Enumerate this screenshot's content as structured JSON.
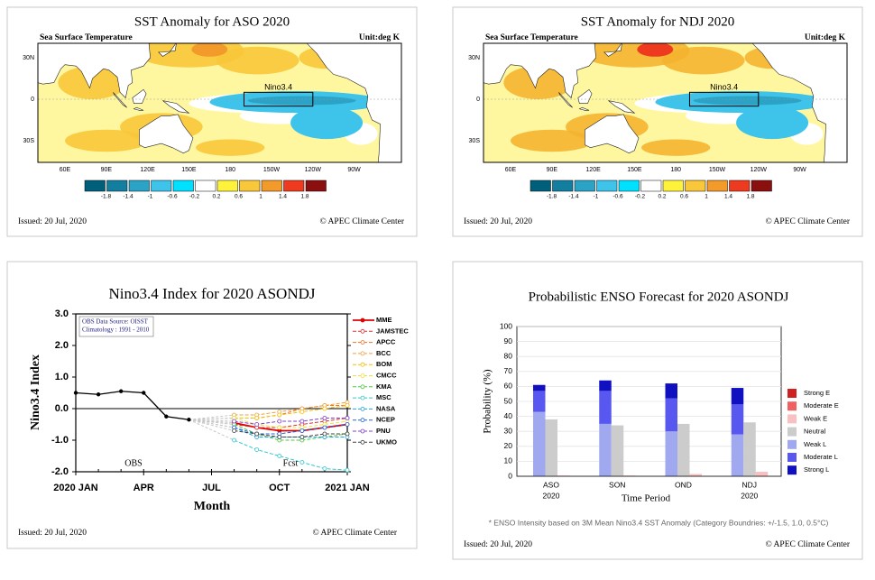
{
  "maps": [
    {
      "title": "SST Anomaly for ASO 2020",
      "subtitle": "Sea Surface Temperature",
      "unit": "Unit:deg K",
      "box_label": "Nino3.4",
      "lat_labels": [
        "30N",
        "0",
        "30S"
      ],
      "lon_labels": [
        "60E",
        "90E",
        "120E",
        "150E",
        "180",
        "150W",
        "120W",
        "90W"
      ],
      "colorbar_ticks": [
        -1.8,
        -1.4,
        -1,
        -0.6,
        -0.2,
        0.2,
        0.6,
        1,
        1.4,
        1.8
      ],
      "colorbar_colors": [
        "#005f7a",
        "#137fa0",
        "#2aa3c6",
        "#3ec3ea",
        "#00e0ff",
        "#ffffff",
        "#fff23a",
        "#f8c73a",
        "#f29a2a",
        "#ee3a1f",
        "#8b0f0f"
      ],
      "issued": "Issued: 20 Jul, 2020",
      "credit": "© APEC Climate Center"
    },
    {
      "title": "SST Anomaly for NDJ 2020",
      "subtitle": "Sea Surface Temperature",
      "unit": "Unit:deg K",
      "box_label": "Nino3.4",
      "lat_labels": [
        "30N",
        "0",
        "30S"
      ],
      "lon_labels": [
        "60E",
        "90E",
        "120E",
        "150E",
        "180",
        "150W",
        "120W",
        "90W"
      ],
      "colorbar_ticks": [
        -1.8,
        -1.4,
        -1,
        -0.6,
        -0.2,
        0.2,
        0.6,
        1,
        1.4,
        1.8
      ],
      "colorbar_colors": [
        "#005f7a",
        "#137fa0",
        "#2aa3c6",
        "#3ec3ea",
        "#00e0ff",
        "#ffffff",
        "#fff23a",
        "#f8c73a",
        "#f29a2a",
        "#ee3a1f",
        "#8b0f0f"
      ],
      "issued": "Issued: 20 Jul, 2020",
      "credit": "© APEC Climate Center"
    }
  ],
  "chart_data": [
    {
      "type": "line",
      "title": "Nino3.4 Index for 2020 ASONDJ",
      "x_label": "Month",
      "y_label": "Nino3.4 Index",
      "source_note": [
        "OBS Data Source: OISST",
        "Climatology : 1991 - 2010"
      ],
      "obs_label": "OBS",
      "fcst_label": "Fcst",
      "xlim": [
        0,
        12
      ],
      "xticks": [
        {
          "value": 0,
          "label": "2020 JAN"
        },
        {
          "value": 3,
          "label": "APR"
        },
        {
          "value": 6,
          "label": "JUL"
        },
        {
          "value": 9,
          "label": "OCT"
        },
        {
          "value": 12,
          "label": "2021 JAN"
        }
      ],
      "ylim": [
        -2,
        3
      ],
      "yticks": [
        {
          "value": -2,
          "label": "-2.0"
        },
        {
          "value": -1,
          "label": "-1.0"
        },
        {
          "value": 0,
          "label": "0.0"
        },
        {
          "value": 1,
          "label": "1.0"
        },
        {
          "value": 2,
          "label": "2.0"
        },
        {
          "value": 3,
          "label": "3.0"
        }
      ],
      "obs": {
        "x": [
          0,
          1,
          2,
          3,
          4,
          5
        ],
        "values": [
          0.5,
          0.45,
          0.55,
          0.5,
          -0.25,
          -0.35
        ],
        "color": "#000000"
      },
      "forecast_x": [
        7,
        8,
        9,
        10,
        11,
        12
      ],
      "series": [
        {
          "name": "MME",
          "color": "#e00000",
          "line_style": "solid",
          "values": [
            -0.45,
            -0.6,
            -0.7,
            -0.7,
            -0.6,
            -0.5
          ]
        },
        {
          "name": "JAMSTEC",
          "color": "#e03030",
          "line_style": "dashed",
          "values": [
            -0.5,
            -0.6,
            -0.6,
            -0.5,
            -0.4,
            -0.3
          ]
        },
        {
          "name": "APCC",
          "color": "#f07020",
          "line_style": "dashed",
          "values": [
            -0.3,
            -0.3,
            -0.2,
            0.0,
            0.1,
            0.1
          ]
        },
        {
          "name": "BCC",
          "color": "#f0a040",
          "line_style": "dashed",
          "values": [
            -0.2,
            -0.2,
            -0.1,
            0.0,
            0.1,
            0.2
          ]
        },
        {
          "name": "BOM",
          "color": "#f5c000",
          "line_style": "dashed",
          "values": [
            -0.3,
            -0.3,
            -0.2,
            -0.1,
            0.0,
            0.1
          ]
        },
        {
          "name": "CMCC",
          "color": "#f0e040",
          "line_style": "dashed",
          "values": [
            -0.3,
            -0.5,
            -0.6,
            -0.6,
            -0.5,
            -0.4
          ]
        },
        {
          "name": "KMA",
          "color": "#50c840",
          "line_style": "dashed",
          "values": [
            -0.5,
            -0.8,
            -1.0,
            -1.0,
            -0.9,
            -0.8
          ]
        },
        {
          "name": "MSC",
          "color": "#30c8d0",
          "line_style": "dashed",
          "values": [
            -1.0,
            -1.3,
            -1.5,
            -1.7,
            -1.9,
            -1.95
          ]
        },
        {
          "name": "NASA",
          "color": "#20a0e0",
          "line_style": "dashed",
          "values": [
            -0.6,
            -0.9,
            -0.9,
            -0.9,
            -0.9,
            -0.9
          ]
        },
        {
          "name": "NCEP",
          "color": "#2060e0",
          "line_style": "dashed",
          "values": [
            -0.6,
            -0.8,
            -0.8,
            -0.7,
            -0.6,
            -0.5
          ]
        },
        {
          "name": "PNU",
          "color": "#8040d0",
          "line_style": "dashed",
          "values": [
            -0.4,
            -0.5,
            -0.4,
            -0.4,
            -0.3,
            -0.3
          ]
        },
        {
          "name": "UKMO",
          "color": "#404040",
          "line_style": "dashed",
          "values": [
            -0.7,
            -0.8,
            -0.9,
            -0.9,
            -0.8,
            -0.8
          ]
        }
      ],
      "issued": "Issued: 20 Jul, 2020",
      "credit": "© APEC Climate Center"
    },
    {
      "type": "bar",
      "title": "Probabilistic ENSO Forecast for 2020 ASONDJ",
      "x_label": "Time Period",
      "y_label": "Probability (%)",
      "categories": [
        "ASO",
        "SON",
        "OND",
        "NDJ"
      ],
      "category_years": [
        "2020",
        null,
        null,
        "2020"
      ],
      "ylim": [
        0,
        100
      ],
      "yticks": [
        0,
        10,
        20,
        30,
        40,
        50,
        60,
        70,
        80,
        90,
        100
      ],
      "series": [
        {
          "name": "Strong E",
          "color": "#d02020",
          "values": [
            0,
            0,
            0,
            0
          ]
        },
        {
          "name": "Moderate E",
          "color": "#f06060",
          "values": [
            0,
            0,
            0,
            0
          ]
        },
        {
          "name": "Weak E",
          "color": "#f8c0c0",
          "values": [
            0.5,
            0.5,
            1.5,
            3
          ]
        },
        {
          "name": "Neutral",
          "color": "#cccccc",
          "values": [
            38,
            34,
            35,
            36
          ]
        },
        {
          "name": "Weak L",
          "color": "#a0a8f0",
          "values": [
            43,
            35,
            30,
            28
          ]
        },
        {
          "name": "Moderate L",
          "color": "#5858f0",
          "values": [
            14,
            22,
            22,
            20
          ]
        },
        {
          "name": "Strong L",
          "color": "#1010c0",
          "values": [
            4,
            7,
            10,
            11
          ]
        }
      ],
      "footnote": "* ENSO Intensity based on 3M Mean Nino3.4 SST Anomaly (Category Boundries: +/-1.5, 1.0, 0.5°C)",
      "issued": "Issued: 20 Jul, 2020",
      "credit": "© APEC Climate Center"
    }
  ]
}
